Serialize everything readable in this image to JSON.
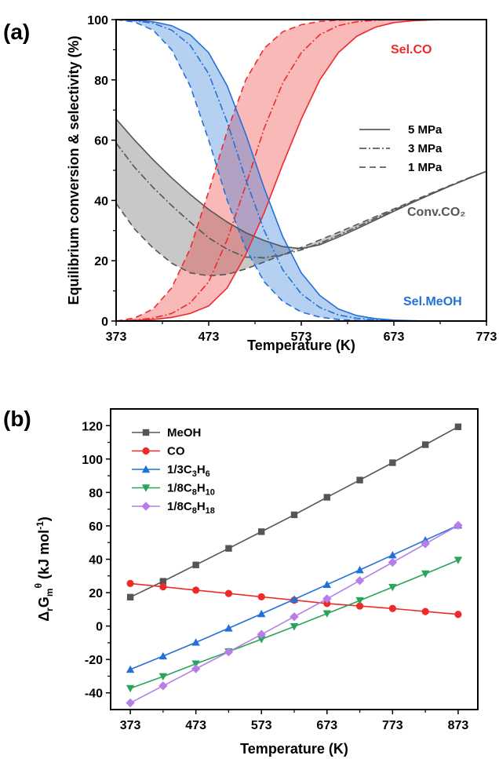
{
  "colors": {
    "gray": "#555555",
    "red": "#ee2a2a",
    "blue": "#2270d8",
    "green": "#2aa45a",
    "purple": "#b57ee8",
    "axis": "#000000"
  },
  "chart_data": [
    {
      "panel_label": "(a)",
      "type": "line",
      "xlabel": "Temperature (K)",
      "ylabel": "Equilibrium conversion & selectivity (%)",
      "xlim": [
        373,
        773
      ],
      "ylim": [
        0,
        100
      ],
      "xticks": [
        "373",
        "473",
        "573",
        "673",
        "773"
      ],
      "yticks": [
        "0",
        "20",
        "40",
        "60",
        "80",
        "100"
      ],
      "legend": {
        "position": "center-right",
        "entries": [
          {
            "label": "5 MPa",
            "style": "solid"
          },
          {
            "label": "3 MPa",
            "style": "dash-dot"
          },
          {
            "label": "1 MPa",
            "style": "dash"
          }
        ]
      },
      "annotations": [
        {
          "text": "Sel.CO",
          "color": "red"
        },
        {
          "text": "Conv.CO₂",
          "color": "gray"
        },
        {
          "text": "Sel.MeOH",
          "color": "blue"
        }
      ],
      "shaded_bands": "Area between the 1 MPa and 5 MPa curves is filled for each quantity",
      "series": [
        {
          "quantity": "Conv.CO₂",
          "pressure": "5 MPa",
          "color": "gray",
          "x": [
            373,
            393,
            413,
            433,
            453,
            473,
            493,
            513,
            533,
            553,
            573,
            593,
            613,
            633,
            653,
            673,
            693,
            713,
            733,
            753,
            773
          ],
          "y": [
            67,
            60,
            53.5,
            47.5,
            42,
            37,
            32.8,
            29.3,
            26.7,
            24.7,
            24,
            25.3,
            27.8,
            30.6,
            33.5,
            36.4,
            39.3,
            42,
            44.7,
            47.2,
            49.7
          ]
        },
        {
          "quantity": "Conv.CO₂",
          "pressure": "3 MPa",
          "color": "gray",
          "x": [
            373,
            393,
            413,
            433,
            453,
            473,
            493,
            513,
            533,
            553,
            573,
            593,
            613,
            633,
            653,
            673,
            693,
            713,
            733,
            753,
            773
          ],
          "y": [
            59,
            51,
            44.3,
            38.3,
            32.8,
            27.6,
            23.8,
            21.2,
            21,
            22,
            23.6,
            25.8,
            28.4,
            31.2,
            34,
            36.8,
            39.5,
            42.2,
            44.8,
            47.3,
            49.7
          ]
        },
        {
          "quantity": "Conv.CO₂",
          "pressure": "1 MPa",
          "color": "gray",
          "x": [
            373,
            393,
            413,
            433,
            453,
            473,
            493,
            513,
            533,
            553,
            573,
            593,
            613,
            633,
            653,
            673,
            693,
            713,
            733,
            753,
            773
          ],
          "y": [
            39,
            30.5,
            24.2,
            19.2,
            16,
            15,
            15.5,
            17.3,
            19.6,
            22,
            24.4,
            26.9,
            29.4,
            32,
            34.6,
            37.2,
            39.8,
            42.4,
            44.9,
            47.4,
            49.7
          ]
        },
        {
          "quantity": "Sel.CO",
          "pressure": "5 MPa",
          "color": "red",
          "x": [
            373,
            393,
            413,
            433,
            453,
            473,
            493,
            513,
            533,
            553,
            573,
            593,
            613,
            633,
            653,
            673,
            693,
            713,
            733,
            753,
            773
          ],
          "y": [
            0,
            0.2,
            0.5,
            1.2,
            2.5,
            5,
            11,
            22,
            36,
            52,
            67,
            80,
            89,
            94.5,
            97.5,
            99,
            99.6,
            99.9,
            100,
            100,
            100
          ]
        },
        {
          "quantity": "Sel.CO",
          "pressure": "3 MPa",
          "color": "red",
          "x": [
            373,
            393,
            413,
            433,
            453,
            473,
            493,
            513,
            533,
            553,
            573,
            593,
            613,
            633,
            653,
            673,
            693,
            713,
            733,
            753,
            773
          ],
          "y": [
            0,
            0.3,
            1,
            2.5,
            6,
            13,
            27,
            45,
            64,
            79,
            89,
            95,
            98,
            99.3,
            99.8,
            100,
            100,
            100,
            100,
            100,
            100
          ]
        },
        {
          "quantity": "Sel.CO",
          "pressure": "1 MPa",
          "color": "red",
          "x": [
            373,
            393,
            413,
            433,
            453,
            473,
            493,
            513,
            533,
            553,
            573,
            593,
            613,
            633,
            653,
            673,
            693,
            713,
            733,
            753,
            773
          ],
          "y": [
            0,
            1,
            4,
            11,
            24,
            43,
            63,
            80,
            90.5,
            96,
            98.3,
            99.4,
            99.8,
            100,
            100,
            100,
            100,
            100,
            100,
            100,
            100
          ]
        },
        {
          "quantity": "Sel.MeOH",
          "pressure": "5 MPa",
          "color": "blue",
          "x": [
            373,
            393,
            413,
            433,
            453,
            473,
            493,
            513,
            533,
            553,
            573,
            593,
            613,
            633,
            653,
            673,
            693,
            713,
            733,
            753,
            773
          ],
          "y": [
            100,
            99.8,
            99.3,
            98,
            95,
            89,
            78,
            62,
            44,
            28,
            16,
            8.5,
            4,
            1.8,
            0.8,
            0.3,
            0.1,
            0,
            0,
            0,
            0
          ]
        },
        {
          "quantity": "Sel.MeOH",
          "pressure": "3 MPa",
          "color": "blue",
          "x": [
            373,
            393,
            413,
            433,
            453,
            473,
            493,
            513,
            533,
            553,
            573,
            593,
            613,
            633,
            653,
            673,
            693,
            713,
            733,
            753,
            773
          ],
          "y": [
            100,
            99.7,
            98.8,
            96.5,
            91.5,
            82,
            66,
            47,
            30,
            17,
            9,
            4.5,
            2,
            0.9,
            0.4,
            0.1,
            0,
            0,
            0,
            0,
            0
          ]
        },
        {
          "quantity": "Sel.MeOH",
          "pressure": "1 MPa",
          "color": "blue",
          "x": [
            373,
            393,
            413,
            433,
            453,
            473,
            493,
            513,
            533,
            553,
            573,
            593,
            613,
            633,
            653,
            673,
            693,
            713,
            733,
            753,
            773
          ],
          "y": [
            100,
            99.2,
            96.5,
            90,
            78,
            60,
            40,
            24,
            13,
            6.5,
            3,
            1.3,
            0.5,
            0.2,
            0.1,
            0,
            0,
            0,
            0,
            0,
            0
          ]
        }
      ]
    },
    {
      "panel_label": "(b)",
      "type": "line",
      "xlabel": "Temperature (K)",
      "ylabel": "ΔrGmθ (kJ mol-1)",
      "xlim": [
        343,
        903
      ],
      "ylim": [
        -50,
        130
      ],
      "xticks": [
        "373",
        "473",
        "573",
        "673",
        "773",
        "873"
      ],
      "yticks": [
        "-40",
        "-20",
        "0",
        "20",
        "40",
        "60",
        "80",
        "100",
        "120"
      ],
      "legend": {
        "position": "top-left"
      },
      "x": [
        373,
        423,
        473,
        523,
        573,
        623,
        673,
        723,
        773,
        823,
        873
      ],
      "series": [
        {
          "name": "MeOH",
          "marker": "square",
          "color": "gray",
          "values": [
            17.3,
            26.8,
            36.6,
            46.5,
            56.5,
            66.6,
            77.1,
            87.4,
            97.8,
            108.6,
            119.3
          ]
        },
        {
          "name": "CO",
          "marker": "circle",
          "color": "red",
          "values": [
            25.5,
            23.5,
            21.5,
            19.5,
            17.5,
            15.5,
            13.5,
            12,
            10.5,
            8.7,
            7
          ]
        },
        {
          "name": "1/3C3H6",
          "marker": "triangle-up",
          "color": "blue",
          "values": [
            -26,
            -18,
            -9.8,
            -1.3,
            7.3,
            16,
            24.8,
            33.6,
            42.5,
            51.4,
            60.3
          ]
        },
        {
          "name": "1/8C8H10",
          "marker": "triangle-down",
          "color": "green",
          "values": [
            -37.3,
            -30.2,
            -22.6,
            -15.3,
            -7.9,
            -0.3,
            7.5,
            15.3,
            23.3,
            31.3,
            39.5
          ]
        },
        {
          "name": "1/8C8H18",
          "marker": "diamond",
          "color": "purple",
          "values": [
            -46,
            -35.8,
            -25.6,
            -15.5,
            -5,
            5.6,
            16.3,
            27.2,
            38.1,
            49.2,
            60.3
          ]
        }
      ]
    }
  ]
}
